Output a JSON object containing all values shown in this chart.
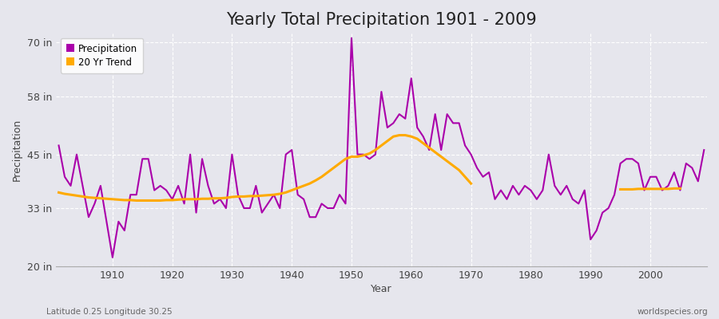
{
  "title": "Yearly Total Precipitation 1901 - 2009",
  "xlabel": "Year",
  "ylabel": "Precipitation",
  "footnote_left": "Latitude 0.25 Longitude 30.25",
  "footnote_right": "worldspecies.org",
  "ylim": [
    20,
    72
  ],
  "yticks": [
    20,
    33,
    45,
    58,
    70
  ],
  "ytick_labels": [
    "20 in",
    "33 in",
    "45 in",
    "58 in",
    "70 in"
  ],
  "xlim": [
    1900.5,
    2009.5
  ],
  "xticks": [
    1910,
    1920,
    1930,
    1940,
    1950,
    1960,
    1970,
    1980,
    1990,
    2000
  ],
  "background_color": "#e6e6ed",
  "plot_bg_color": "#e6e6ed",
  "grid_color": "#ffffff",
  "precip_color": "#aa00aa",
  "trend_color": "#ffaa00",
  "title_fontsize": 15,
  "years": [
    1901,
    1902,
    1903,
    1904,
    1905,
    1906,
    1907,
    1908,
    1909,
    1910,
    1911,
    1912,
    1913,
    1914,
    1915,
    1916,
    1917,
    1918,
    1919,
    1920,
    1921,
    1922,
    1923,
    1924,
    1925,
    1926,
    1927,
    1928,
    1929,
    1930,
    1931,
    1932,
    1933,
    1934,
    1935,
    1936,
    1937,
    1938,
    1939,
    1940,
    1941,
    1942,
    1943,
    1944,
    1945,
    1946,
    1947,
    1948,
    1949,
    1950,
    1951,
    1952,
    1953,
    1954,
    1955,
    1956,
    1957,
    1958,
    1959,
    1960,
    1961,
    1962,
    1963,
    1964,
    1965,
    1966,
    1967,
    1968,
    1969,
    1970,
    1971,
    1972,
    1973,
    1974,
    1975,
    1976,
    1977,
    1978,
    1979,
    1980,
    1981,
    1982,
    1983,
    1984,
    1985,
    1986,
    1987,
    1988,
    1989,
    1990,
    1991,
    1992,
    1993,
    1994,
    1995,
    1996,
    1997,
    1998,
    1999,
    2000,
    2001,
    2002,
    2003,
    2004,
    2005,
    2006,
    2007,
    2008,
    2009
  ],
  "precip": [
    47,
    40,
    38,
    45,
    38,
    31,
    34,
    38,
    30,
    22,
    30,
    28,
    36,
    36,
    44,
    44,
    37,
    38,
    37,
    35,
    38,
    34,
    45,
    32,
    44,
    38,
    34,
    35,
    33,
    45,
    36,
    33,
    33,
    38,
    32,
    34,
    36,
    33,
    45,
    46,
    36,
    35,
    31,
    31,
    34,
    33,
    33,
    36,
    34,
    71,
    45,
    45,
    44,
    45,
    59,
    51,
    52,
    54,
    53,
    62,
    51,
    49,
    46,
    54,
    46,
    54,
    52,
    52,
    47,
    45,
    42,
    40,
    41,
    35,
    37,
    35,
    38,
    36,
    38,
    37,
    35,
    37,
    45,
    38,
    36,
    38,
    35,
    34,
    37,
    26,
    28,
    32,
    33,
    36,
    43,
    44,
    44,
    43,
    37,
    40,
    40,
    37,
    38,
    41,
    37,
    43,
    42,
    39,
    46
  ],
  "trend_segments": [
    {
      "years": [
        1901,
        1902,
        1903,
        1904,
        1905,
        1906,
        1907,
        1908,
        1909,
        1910,
        1911,
        1912,
        1913,
        1914,
        1915,
        1916,
        1917,
        1918,
        1919,
        1920,
        1921,
        1922,
        1923,
        1924,
        1925,
        1926,
        1927,
        1928,
        1929,
        1930,
        1931,
        1932,
        1933,
        1934,
        1935,
        1936,
        1937,
        1938,
        1939,
        1940,
        1941,
        1942,
        1943,
        1944,
        1945,
        1946,
        1947,
        1948,
        1949,
        1950,
        1951,
        1952,
        1953,
        1954,
        1955,
        1956,
        1957,
        1958,
        1959,
        1960,
        1961,
        1962,
        1963,
        1964,
        1965,
        1966,
        1967,
        1968,
        1969,
        1970
      ],
      "values": [
        36.5,
        36.2,
        36.0,
        35.8,
        35.6,
        35.4,
        35.3,
        35.2,
        35.1,
        35.0,
        34.9,
        34.8,
        34.8,
        34.7,
        34.7,
        34.7,
        34.7,
        34.7,
        34.8,
        34.8,
        34.9,
        35.0,
        35.0,
        35.0,
        35.1,
        35.1,
        35.2,
        35.2,
        35.3,
        35.5,
        35.6,
        35.6,
        35.7,
        35.7,
        35.8,
        35.9,
        36.0,
        36.2,
        36.5,
        37.0,
        37.5,
        38.0,
        38.5,
        39.2,
        40.0,
        41.0,
        42.0,
        43.0,
        44.0,
        44.5,
        44.5,
        44.8,
        45.2,
        46.0,
        47.0,
        48.0,
        49.0,
        49.3,
        49.3,
        49.0,
        48.5,
        47.5,
        46.5,
        45.5,
        44.5,
        43.5,
        42.5,
        41.5,
        40.0,
        38.5
      ]
    },
    {
      "years": [
        1995,
        1996,
        1997,
        1998,
        1999,
        2000,
        2001,
        2002,
        2003,
        2004,
        2005
      ],
      "values": [
        37.2,
        37.2,
        37.2,
        37.3,
        37.3,
        37.3,
        37.3,
        37.3,
        37.3,
        37.4,
        37.4
      ]
    }
  ]
}
